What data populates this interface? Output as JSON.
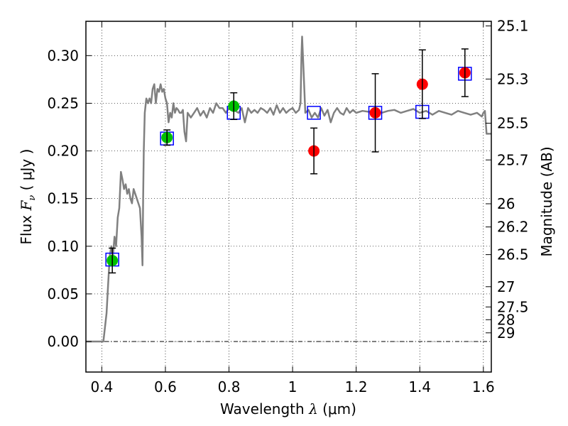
{
  "chart_data": {
    "type": "scatter",
    "xlabel": "Wavelength",
    "xlabel_symbol": "λ",
    "xlabel_unit": "μm",
    "ylabel": "Flux",
    "ylabel_symbol": "F",
    "ylabel_subscript": "ν",
    "ylabel_unit": "μJy",
    "y2label": "Magnitude (AB)",
    "xlim": [
      0.35,
      1.625
    ],
    "ylim": [
      -0.032,
      0.336
    ],
    "grid": true,
    "x_ticks": [
      0.4,
      0.6,
      0.8,
      1.0,
      1.2,
      1.4,
      1.6
    ],
    "x_tick_labels": [
      "0.4",
      "0.6",
      "0.8",
      "1",
      "1.2",
      "1.4",
      "1.6"
    ],
    "y_ticks": [
      0.0,
      0.05,
      0.1,
      0.15,
      0.2,
      0.25,
      0.3
    ],
    "y_tick_labels": [
      "0.00",
      "0.05",
      "0.10",
      "0.15",
      "0.20",
      "0.25",
      "0.30"
    ],
    "y2_ticks": [
      "25.1",
      "25.3",
      "25.5",
      "25.7",
      "26",
      "26.2",
      "26.5",
      "27",
      "27.5",
      "28",
      "29"
    ],
    "model_spectrum": {
      "color": "#808080",
      "x": [
        0.35,
        0.37,
        0.39,
        0.405,
        0.415,
        0.42,
        0.425,
        0.43,
        0.435,
        0.44,
        0.445,
        0.45,
        0.455,
        0.46,
        0.465,
        0.47,
        0.475,
        0.48,
        0.485,
        0.49,
        0.495,
        0.5,
        0.51,
        0.52,
        0.525,
        0.528,
        0.53,
        0.532,
        0.535,
        0.54,
        0.545,
        0.55,
        0.555,
        0.56,
        0.565,
        0.57,
        0.575,
        0.58,
        0.585,
        0.59,
        0.595,
        0.6,
        0.605,
        0.61,
        0.615,
        0.62,
        0.625,
        0.63,
        0.635,
        0.64,
        0.645,
        0.65,
        0.655,
        0.66,
        0.665,
        0.67,
        0.68,
        0.69,
        0.7,
        0.71,
        0.72,
        0.73,
        0.74,
        0.75,
        0.76,
        0.77,
        0.78,
        0.79,
        0.8,
        0.81,
        0.82,
        0.83,
        0.84,
        0.85,
        0.86,
        0.87,
        0.88,
        0.89,
        0.9,
        0.91,
        0.92,
        0.93,
        0.94,
        0.95,
        0.96,
        0.97,
        0.98,
        0.99,
        1.0,
        1.01,
        1.02,
        1.025,
        1.028,
        1.03,
        1.035,
        1.04,
        1.05,
        1.06,
        1.07,
        1.08,
        1.09,
        1.1,
        1.11,
        1.12,
        1.13,
        1.14,
        1.15,
        1.16,
        1.17,
        1.18,
        1.19,
        1.2,
        1.22,
        1.24,
        1.26,
        1.28,
        1.3,
        1.32,
        1.34,
        1.36,
        1.38,
        1.4,
        1.42,
        1.44,
        1.46,
        1.48,
        1.5,
        1.52,
        1.54,
        1.56,
        1.58,
        1.595,
        1.6,
        1.605,
        1.61,
        1.625
      ],
      "y": [
        0.0,
        0.0,
        0.0,
        0.0,
        0.03,
        0.06,
        0.09,
        0.1,
        0.09,
        0.11,
        0.1,
        0.13,
        0.14,
        0.178,
        0.17,
        0.16,
        0.165,
        0.155,
        0.16,
        0.15,
        0.145,
        0.16,
        0.15,
        0.14,
        0.11,
        0.08,
        0.15,
        0.2,
        0.24,
        0.255,
        0.25,
        0.255,
        0.25,
        0.265,
        0.27,
        0.25,
        0.265,
        0.262,
        0.27,
        0.262,
        0.265,
        0.255,
        0.25,
        0.23,
        0.24,
        0.235,
        0.25,
        0.24,
        0.245,
        0.243,
        0.24,
        0.24,
        0.243,
        0.22,
        0.21,
        0.24,
        0.235,
        0.24,
        0.245,
        0.237,
        0.242,
        0.235,
        0.245,
        0.24,
        0.25,
        0.245,
        0.245,
        0.24,
        0.245,
        0.25,
        0.242,
        0.24,
        0.245,
        0.23,
        0.245,
        0.24,
        0.243,
        0.24,
        0.245,
        0.243,
        0.24,
        0.245,
        0.238,
        0.248,
        0.24,
        0.245,
        0.24,
        0.243,
        0.245,
        0.24,
        0.243,
        0.25,
        0.3,
        0.32,
        0.28,
        0.24,
        0.243,
        0.235,
        0.24,
        0.235,
        0.245,
        0.237,
        0.243,
        0.23,
        0.24,
        0.245,
        0.24,
        0.238,
        0.245,
        0.24,
        0.243,
        0.24,
        0.242,
        0.241,
        0.243,
        0.24,
        0.242,
        0.243,
        0.24,
        0.242,
        0.244,
        0.24,
        0.242,
        0.238,
        0.242,
        0.24,
        0.238,
        0.242,
        0.24,
        0.238,
        0.24,
        0.236,
        0.24,
        0.242,
        0.218,
        0.218
      ]
    },
    "series": [
      {
        "color": "#00c000",
        "marker": "circle",
        "x": [
          0.433,
          0.605,
          0.815
        ],
        "y": [
          0.085,
          0.214,
          0.247
        ],
        "yerr": [
          0.013,
          0.008,
          0.014
        ]
      },
      {
        "color": "#ff0000",
        "marker": "circle",
        "x": [
          1.067,
          1.26,
          1.408,
          1.542
        ],
        "y": [
          0.2,
          0.24,
          0.27,
          0.282
        ],
        "yerr": [
          0.024,
          0.041,
          0.036,
          0.025
        ]
      },
      {
        "color": "#0000ff",
        "marker": "open-square",
        "x": [
          0.433,
          0.605,
          0.815,
          1.067,
          1.26,
          1.408,
          1.542
        ],
        "y": [
          0.086,
          0.213,
          0.24,
          0.24,
          0.24,
          0.241,
          0.281
        ]
      }
    ]
  }
}
